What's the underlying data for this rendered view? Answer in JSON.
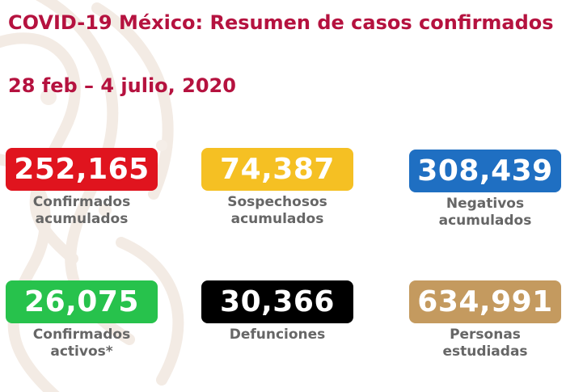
{
  "header": {
    "title": "COVID-19 México: Resumen de casos confirmados",
    "date_range": "28 feb – 4 julio, 2020"
  },
  "colors": {
    "title": "#b5123f",
    "label": "#666666"
  },
  "stats": [
    {
      "value": "252,165",
      "label_line1": "Confirmados",
      "label_line2": "acumulados",
      "color": "#e0141e"
    },
    {
      "value": "74,387",
      "label_line1": "Sospechosos",
      "label_line2": "acumulados",
      "color": "#f5c023"
    },
    {
      "value": "308,439",
      "label_line1": "Negativos",
      "label_line2": "acumulados",
      "color": "#1f6fc2"
    },
    {
      "value": "26,075",
      "label_line1": "Confirmados",
      "label_line2": "activos*",
      "color": "#27c24c"
    },
    {
      "value": "30,366",
      "label_line1": "Defunciones",
      "label_line2": "",
      "color": "#000000"
    },
    {
      "value": "634,991",
      "label_line1": "Personas",
      "label_line2": "estudiadas",
      "color": "#c49a5f"
    }
  ]
}
